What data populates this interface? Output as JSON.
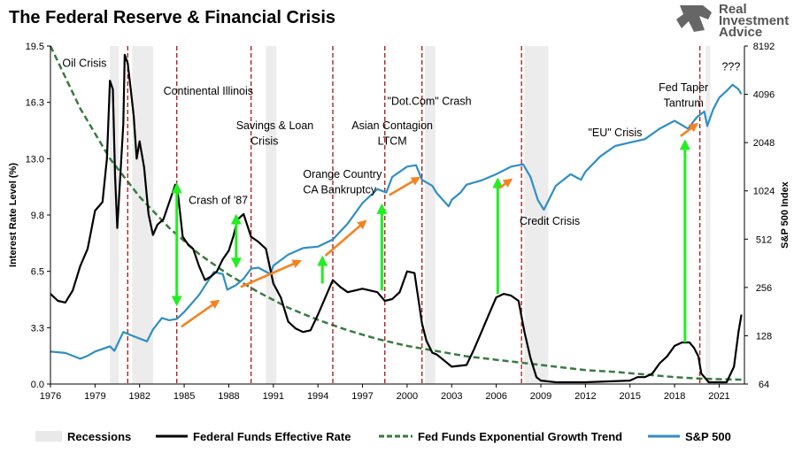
{
  "chart_data": {
    "type": "line",
    "title": "The Federal Reserve & Financial Crisis",
    "brand": [
      "Real",
      "Investment",
      "Advice"
    ],
    "ylabel_left": "Interest Rate Level (%)",
    "ylabel_right": "S&P 500 Index",
    "x_range": [
      1976,
      2022.7
    ],
    "y_left_range": [
      0,
      19.5
    ],
    "y_right_range": [
      64,
      8192
    ],
    "x_ticks": [
      "1976",
      "1979",
      "1982",
      "1985",
      "1988",
      "1991",
      "1994",
      "1997",
      "2000",
      "2003",
      "2006",
      "2009",
      "2012",
      "2015",
      "2018",
      "2021"
    ],
    "x_tick_values": [
      1976,
      1979,
      1982,
      1985,
      1988,
      1991,
      1994,
      1997,
      2000,
      2003,
      2006,
      2009,
      2012,
      2015,
      2018,
      2021
    ],
    "y_left_ticks": [
      "0.0",
      "3.3",
      "6.5",
      "9.8",
      "13.0",
      "16.3",
      "19.5"
    ],
    "y_left_tick_values": [
      0,
      3.25,
      6.5,
      9.75,
      13.0,
      16.25,
      19.5
    ],
    "y_right_ticks": [
      "64",
      "128",
      "256",
      "512",
      "1024",
      "2048",
      "4096",
      "8192"
    ],
    "y_right_tick_values": [
      64,
      128,
      256,
      512,
      1024,
      2048,
      4096,
      8192
    ],
    "recessions": [
      [
        1980.0,
        1980.6
      ],
      [
        1981.5,
        1982.9
      ],
      [
        1990.5,
        1991.2
      ],
      [
        2001.2,
        2001.9
      ],
      [
        2007.9,
        2009.5
      ],
      [
        2020.1,
        2020.4
      ]
    ],
    "crisis_lines": [
      1981.2,
      1984.5,
      1989.5,
      1995.0,
      1998.5,
      2001.0,
      2007.7,
      2019.7
    ],
    "series": [
      {
        "name": "Federal Funds Effective Rate",
        "color": "#000000",
        "axis": "left",
        "x": [
          1976,
          1976.5,
          1977,
          1977.5,
          1978,
          1978.5,
          1979,
          1979.5,
          1979.8,
          1980,
          1980.2,
          1980.35,
          1980.5,
          1980.7,
          1980.9,
          1981,
          1981.2,
          1981.4,
          1981.6,
          1981.8,
          1982,
          1982.3,
          1982.6,
          1982.9,
          1983.2,
          1983.6,
          1984,
          1984.4,
          1984.6,
          1984.9,
          1985.3,
          1985.6,
          1986,
          1986.4,
          1986.8,
          1987.2,
          1987.6,
          1988,
          1988.3,
          1988.6,
          1989,
          1989.5,
          1990,
          1990.5,
          1991,
          1991.5,
          1992,
          1992.5,
          1993,
          1993.5,
          1994,
          1994.5,
          1995,
          1995.5,
          1996,
          1997,
          1998,
          1998.5,
          1999,
          1999.5,
          2000,
          2000.5,
          2001,
          2001.3,
          2001.7,
          2002,
          2003,
          2004,
          2004.5,
          2005,
          2005.5,
          2006,
          2006.5,
          2007,
          2007.5,
          2007.9,
          2008.3,
          2008.7,
          2009,
          2010,
          2012,
          2015,
          2015.5,
          2016,
          2016.5,
          2017,
          2017.5,
          2018,
          2018.5,
          2019,
          2019.3,
          2019.6,
          2019.8,
          2020.1,
          2020.3,
          2021,
          2021.5,
          2022,
          2022.3,
          2022.5
        ],
        "y": [
          5.2,
          4.8,
          4.7,
          5.4,
          6.8,
          7.8,
          10.0,
          10.5,
          13.0,
          17.5,
          17.0,
          12.0,
          9.0,
          12.0,
          15.0,
          19.0,
          18.5,
          17.0,
          15.5,
          13.0,
          14.0,
          12.5,
          9.8,
          8.6,
          9.2,
          9.5,
          10.5,
          11.5,
          10.8,
          8.5,
          8.0,
          7.8,
          6.8,
          6.0,
          6.2,
          6.5,
          7.2,
          7.7,
          8.5,
          9.5,
          9.8,
          8.5,
          8.2,
          7.8,
          5.8,
          5.0,
          3.6,
          3.2,
          3.0,
          3.1,
          4.0,
          5.0,
          6.0,
          5.6,
          5.3,
          5.5,
          5.3,
          4.8,
          4.9,
          5.3,
          6.5,
          6.4,
          3.5,
          2.5,
          1.8,
          1.7,
          1.0,
          1.1,
          2.0,
          3.0,
          4.0,
          5.0,
          5.2,
          5.1,
          4.8,
          3.0,
          1.5,
          0.4,
          0.2,
          0.1,
          0.1,
          0.2,
          0.4,
          0.4,
          0.6,
          1.2,
          1.6,
          2.2,
          2.4,
          2.4,
          2.1,
          1.6,
          0.6,
          0.3,
          0.1,
          0.1,
          0.1,
          1.0,
          3.0,
          4.0
        ]
      },
      {
        "name": "Fed Funds Exponential Growth Trend",
        "color": "#3a7a3f",
        "axis": "left",
        "x": [
          1976,
          1978,
          1980,
          1982,
          1984,
          1986,
          1988,
          1990,
          1992,
          1994,
          1996,
          1998,
          2000,
          2002,
          2004,
          2006,
          2008,
          2010,
          2012,
          2014,
          2016,
          2018,
          2020,
          2022.5
        ],
        "y": [
          19.5,
          15.9,
          13.0,
          10.8,
          9.0,
          7.5,
          6.3,
          5.3,
          4.4,
          3.7,
          3.1,
          2.6,
          2.2,
          1.9,
          1.6,
          1.4,
          1.2,
          1.0,
          0.8,
          0.7,
          0.55,
          0.4,
          0.3,
          0.25
        ]
      },
      {
        "name": "S&P 500",
        "color": "#2e8fc5",
        "axis": "right",
        "x": [
          1976,
          1977,
          1978,
          1978.5,
          1979,
          1980,
          1980.3,
          1980.9,
          1981.5,
          1982.5,
          1982.9,
          1983.5,
          1984,
          1984.5,
          1985,
          1986,
          1987,
          1987.6,
          1987.9,
          1988.5,
          1989,
          1989.5,
          1990,
          1990.8,
          1991,
          1992,
          1993,
          1994,
          1995,
          1996,
          1997,
          1998,
          1998.6,
          1999,
          2000,
          2000.6,
          2001,
          2001.7,
          2002,
          2002.8,
          2003,
          2003.6,
          2004,
          2005,
          2006,
          2007,
          2007.8,
          2008.3,
          2008.8,
          2009.2,
          2010,
          2011,
          2011.7,
          2012,
          2013,
          2014,
          2015,
          2016,
          2017,
          2018,
          2018.9,
          2019.5,
          2020,
          2020.2,
          2020.6,
          2021,
          2021.5,
          2021.9,
          2022.3,
          2022.5
        ],
        "y": [
          102,
          100,
          92,
          96,
          102,
          110,
          103,
          135,
          128,
          118,
          140,
          165,
          160,
          163,
          180,
          230,
          320,
          310,
          248,
          265,
          290,
          335,
          340,
          310,
          350,
          410,
          450,
          460,
          510,
          640,
          860,
          1050,
          1000,
          1250,
          1450,
          1480,
          1200,
          1100,
          990,
          820,
          900,
          1000,
          1120,
          1190,
          1300,
          1450,
          1500,
          1250,
          900,
          780,
          1100,
          1300,
          1200,
          1350,
          1680,
          1950,
          2050,
          2150,
          2500,
          2800,
          2500,
          2950,
          3200,
          2600,
          3300,
          3900,
          4300,
          4700,
          4400,
          4100
        ]
      }
    ],
    "drop_arrows": [
      {
        "x": 1984.5,
        "from": 11.5,
        "to": 4.6
      },
      {
        "x": 1988.5,
        "from": 9.7,
        "to": 6.8
      }
    ],
    "rise_arrows": [
      {
        "x": 1994.3,
        "from": 5.8,
        "to": 7.3
      },
      {
        "x": 1998.3,
        "from": 5.4,
        "to": 10.3
      },
      {
        "x": 2006.1,
        "from": 5.2,
        "to": 11.8
      },
      {
        "x": 2018.7,
        "from": 2.4,
        "to": 14.0
      }
    ],
    "trend_arrows": [
      {
        "x1": 1984.8,
        "y1": 3.3,
        "x2": 1987.3,
        "y2": 4.8
      },
      {
        "x1": 1988.8,
        "y1": 5.6,
        "x2": 1992.8,
        "y2": 7.1
      },
      {
        "x1": 1994.5,
        "y1": 7.4,
        "x2": 1997.2,
        "y2": 9.4
      },
      {
        "x1": 1998.8,
        "y1": 10.9,
        "x2": 2000.8,
        "y2": 11.9
      },
      {
        "x1": 2006.2,
        "y1": 11.3,
        "x2": 2007.0,
        "y2": 11.8
      },
      {
        "x1": 2018.4,
        "y1": 14.3,
        "x2": 2019.5,
        "y2": 15.0
      }
    ],
    "annotations": [
      {
        "text": "Oil Crisis",
        "x": 1976.8,
        "y": 18.3,
        "anchor": "start"
      },
      {
        "text": "Continental Illinois",
        "x": 1983.6,
        "y": 16.7,
        "anchor": "start"
      },
      {
        "text": "Savings & Loan",
        "x": 1991.1,
        "y": 14.7,
        "anchor": "middle"
      },
      {
        "text": "Crisis",
        "x": 1990.4,
        "y": 13.8,
        "anchor": "middle"
      },
      {
        "text": "Crash of '87",
        "x": 1985.3,
        "y": 10.4,
        "anchor": "start"
      },
      {
        "text": "Orange Country",
        "x": 1993.0,
        "y": 11.9,
        "anchor": "start"
      },
      {
        "text": "CA Bankruptcy",
        "x": 1993.0,
        "y": 11.0,
        "anchor": "start"
      },
      {
        "text": "Asian Contagion",
        "x": 1999.0,
        "y": 14.7,
        "anchor": "middle"
      },
      {
        "text": "LTCM",
        "x": 1999.0,
        "y": 13.8,
        "anchor": "middle"
      },
      {
        "text": "\"Dot.Com\" Crash",
        "x": 2001.5,
        "y": 16.1,
        "anchor": "middle"
      },
      {
        "text": "Credit Crisis",
        "x": 2009.6,
        "y": 9.2,
        "anchor": "middle"
      },
      {
        "text": "\"EU\" Crisis",
        "x": 2014.0,
        "y": 14.3,
        "anchor": "middle"
      },
      {
        "text": "Fed Taper",
        "x": 2018.6,
        "y": 16.9,
        "anchor": "middle"
      },
      {
        "text": "Tantrum",
        "x": 2018.6,
        "y": 16.0,
        "anchor": "middle"
      },
      {
        "text": "???",
        "x": 2021.8,
        "y": 18.1,
        "anchor": "middle"
      }
    ],
    "legend": [
      {
        "label": "Recessions",
        "kind": "band",
        "color": "#e9e9e9"
      },
      {
        "label": "Federal Funds Effective Rate",
        "kind": "line",
        "color": "#000000"
      },
      {
        "label": "Fed Funds Exponential Growth Trend",
        "kind": "dash",
        "color": "#3a7a3f"
      },
      {
        "label": "S&P 500",
        "kind": "line",
        "color": "#2e8fc5"
      }
    ],
    "colors": {
      "recession": "#ececec",
      "crisis_line": "#b22222",
      "drop_arrow": "#22ee22",
      "trend_arrow": "#f58220",
      "axis": "#000000"
    }
  }
}
